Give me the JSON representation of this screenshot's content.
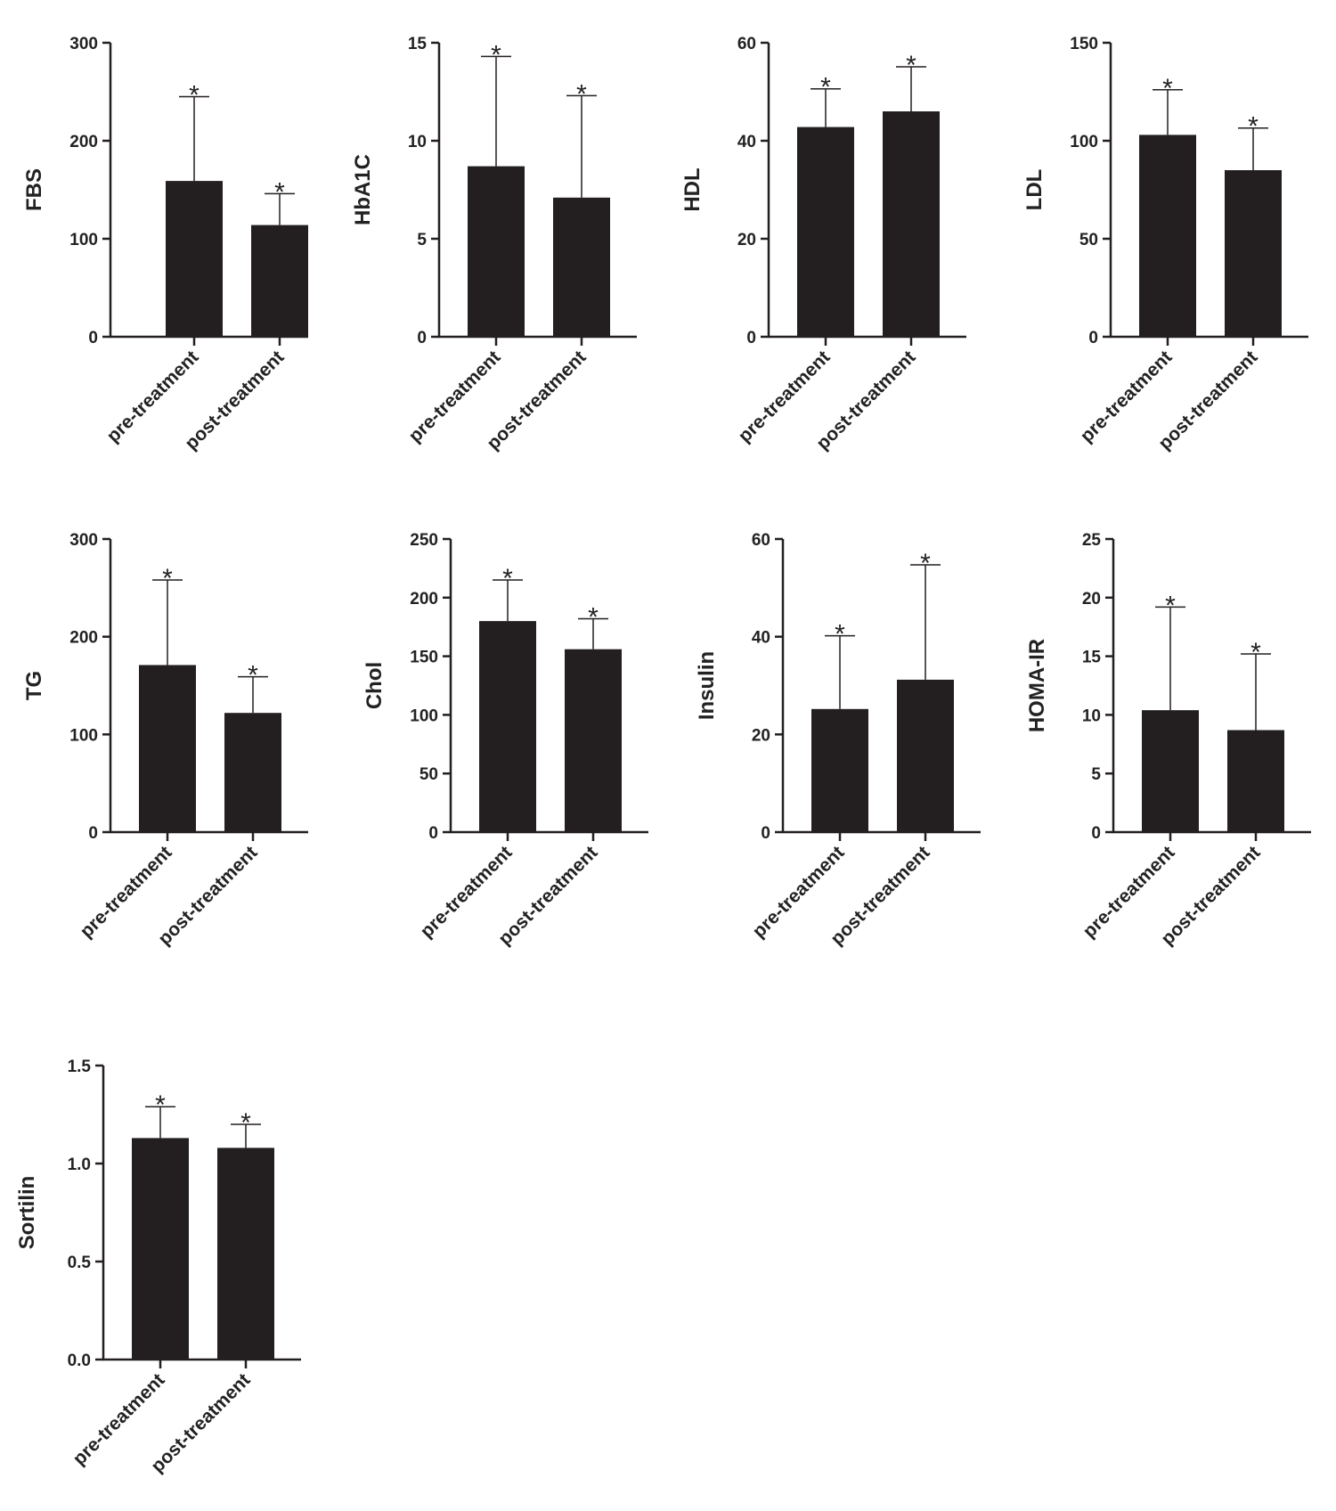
{
  "figure": {
    "bar_color": "#231f20",
    "axis_color": "#231f20"
  },
  "chart_data": [
    {
      "type": "bar",
      "ylabel": "FBS",
      "categories": [
        "pre-treatment",
        "post-treatment"
      ],
      "values": [
        159,
        114
      ],
      "errors": [
        86,
        32
      ],
      "annotations": [
        "*",
        "*"
      ],
      "ylim": [
        0,
        300
      ],
      "yticks": [
        0,
        100,
        200,
        300
      ],
      "ytick_labels": [
        "0",
        "100",
        "200",
        "300"
      ]
    },
    {
      "type": "bar",
      "ylabel": "HbA1C",
      "categories": [
        "pre-treatment",
        "post-treatment"
      ],
      "values": [
        8.7,
        7.1
      ],
      "errors": [
        5.6,
        5.2
      ],
      "annotations": [
        "*",
        "*"
      ],
      "ylim": [
        0,
        15
      ],
      "yticks": [
        0,
        5,
        10,
        15
      ],
      "ytick_labels": [
        "0",
        "5",
        "10",
        "15"
      ]
    },
    {
      "type": "bar",
      "ylabel": "HDL",
      "categories": [
        "pre-treatment",
        "post-treatment"
      ],
      "values": [
        42.8,
        46
      ],
      "errors": [
        7.8,
        9.1
      ],
      "annotations": [
        "*",
        "*"
      ],
      "ylim": [
        0,
        60
      ],
      "yticks": [
        0,
        20,
        40,
        60
      ],
      "ytick_labels": [
        "0",
        "20",
        "40",
        "60"
      ]
    },
    {
      "type": "bar",
      "ylabel": "LDL",
      "categories": [
        "pre-treatment",
        "post-treatment"
      ],
      "values": [
        103,
        85
      ],
      "errors": [
        23,
        21.5
      ],
      "annotations": [
        "*",
        "*"
      ],
      "ylim": [
        0,
        150
      ],
      "yticks": [
        0,
        50,
        100,
        150
      ],
      "ytick_labels": [
        "0",
        "50",
        "100",
        "150"
      ]
    },
    {
      "type": "bar",
      "ylabel": "TG",
      "categories": [
        "pre-treatment",
        "post-treatment"
      ],
      "values": [
        171,
        122
      ],
      "errors": [
        87,
        37
      ],
      "annotations": [
        "*",
        "*"
      ],
      "ylim": [
        0,
        300
      ],
      "yticks": [
        0,
        100,
        200,
        300
      ],
      "ytick_labels": [
        "0",
        "100",
        "200",
        "300"
      ]
    },
    {
      "type": "bar",
      "ylabel": "Chol",
      "categories": [
        "pre-treatment",
        "post-treatment"
      ],
      "values": [
        180,
        156
      ],
      "errors": [
        35,
        26
      ],
      "annotations": [
        "*",
        "*"
      ],
      "ylim": [
        0,
        250
      ],
      "yticks": [
        0,
        50,
        100,
        150,
        200,
        250
      ],
      "ytick_labels": [
        "0",
        "50",
        "100",
        "150",
        "200",
        "250"
      ]
    },
    {
      "type": "bar",
      "ylabel": "Insulin",
      "categories": [
        "pre-treatment",
        "post-treatment"
      ],
      "values": [
        25.2,
        31.2
      ],
      "errors": [
        15,
        23.5
      ],
      "annotations": [
        "*",
        "*"
      ],
      "ylim": [
        0,
        60
      ],
      "yticks": [
        0,
        20,
        40,
        60
      ],
      "ytick_labels": [
        "0",
        "20",
        "40",
        "60"
      ]
    },
    {
      "type": "bar",
      "ylabel": "HOMA-IR",
      "categories": [
        "pre-treatment",
        "post-treatment"
      ],
      "values": [
        10.4,
        8.7
      ],
      "errors": [
        8.8,
        6.5
      ],
      "annotations": [
        "*",
        "*"
      ],
      "ylim": [
        0,
        25
      ],
      "yticks": [
        0,
        5,
        10,
        15,
        20,
        25
      ],
      "ytick_labels": [
        "0",
        "5",
        "10",
        "15",
        "20",
        "25"
      ]
    },
    {
      "type": "bar",
      "ylabel": "Sortilin",
      "categories": [
        "pre-treatment",
        "post-treatment"
      ],
      "values": [
        1.13,
        1.08
      ],
      "errors": [
        0.16,
        0.12
      ],
      "annotations": [
        "*",
        "*"
      ],
      "ylim": [
        0,
        1.5
      ],
      "yticks": [
        0,
        0.5,
        1,
        1.5
      ],
      "ytick_labels": [
        "0.0",
        "0.5",
        "1.0",
        "1.5"
      ]
    }
  ]
}
